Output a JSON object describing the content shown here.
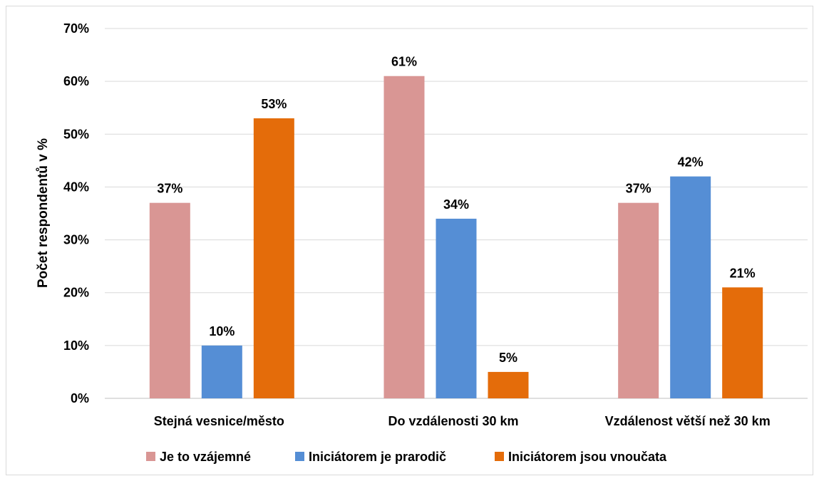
{
  "chart_data": {
    "type": "bar",
    "title": "",
    "xlabel": "",
    "ylabel": "Počet respondentů v %",
    "ylim": [
      0,
      70
    ],
    "y_ticks": [
      "0%",
      "10%",
      "20%",
      "30%",
      "40%",
      "50%",
      "60%",
      "70%"
    ],
    "categories": [
      "Stejná vesnice/město",
      "Do vzdálenosti 30 km",
      "Vzdálenost větší než 30 km"
    ],
    "series": [
      {
        "name": "Je to vzájemné",
        "color": "#d99694",
        "values": [
          37,
          61,
          37
        ],
        "labels": [
          "37%",
          "61%",
          "37%"
        ]
      },
      {
        "name": "Iniciátorem je prarodič",
        "color": "#558ed5",
        "values": [
          10,
          34,
          42
        ],
        "labels": [
          "10%",
          "34%",
          "42%"
        ]
      },
      {
        "name": "Iniciátorem jsou vnoučata",
        "color": "#e46c0a",
        "values": [
          53,
          5,
          21
        ],
        "labels": [
          "53%",
          "5%",
          "21%"
        ]
      }
    ],
    "grid": true,
    "legend_position": "bottom"
  }
}
